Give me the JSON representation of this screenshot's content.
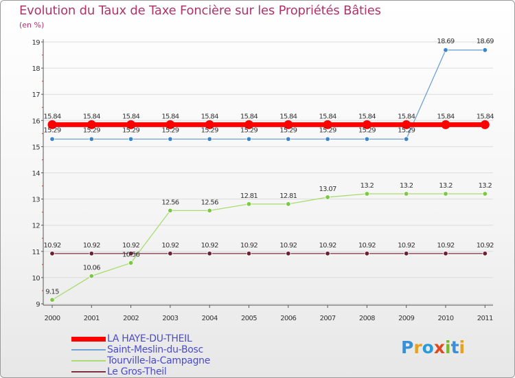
{
  "title": "Evolution du Taux de Taxe Foncière sur les Propriétés Bâties",
  "unit": "(en %)",
  "logo": {
    "text": "Proxiti",
    "colors": [
      "#3a8fd8",
      "#e8a020",
      "#2a9bd8",
      "#e04820",
      "#7ab82e",
      "#3a8fd8",
      "#e8a020"
    ]
  },
  "chart_data": {
    "type": "line",
    "title": "Evolution du Taux de Taxe Foncière sur les Propriétés Bâties",
    "ylabel": "(en %)",
    "xlabel": "",
    "ylim": [
      9,
      19
    ],
    "yticks": [
      "9",
      "10",
      "11",
      "12",
      "13",
      "14",
      "15",
      "16",
      "17",
      "18",
      "19"
    ],
    "x": [
      "2000",
      "2001",
      "2002",
      "2003",
      "2004",
      "2005",
      "2006",
      "2007",
      "2008",
      "2009",
      "2010",
      "2011"
    ],
    "series": [
      {
        "name": "LA HAYE-DU-THEIL",
        "color": "#ff0000",
        "thick": true,
        "values": [
          15.84,
          15.84,
          15.84,
          15.84,
          15.84,
          15.84,
          15.84,
          15.84,
          15.84,
          15.84,
          15.84,
          15.84
        ],
        "labels": [
          "15.84",
          "15.84",
          "15.84",
          "15.84",
          "15.84",
          "15.84",
          "15.84",
          "15.84",
          "15.84",
          "15.84",
          "15.84",
          "15.84"
        ]
      },
      {
        "name": "Saint-Meslin-du-Bosc",
        "color": "#6fa1d3",
        "marker": "#3a86c8",
        "values": [
          15.29,
          15.29,
          15.29,
          15.29,
          15.29,
          15.29,
          15.29,
          15.29,
          15.29,
          15.29,
          18.69,
          18.69
        ],
        "labels": [
          "15.29",
          "15.29",
          "15.29",
          "15.29",
          "15.29",
          "15.29",
          "15.29",
          "15.29",
          "15.29",
          "15.29",
          "18.69",
          "18.69"
        ]
      },
      {
        "name": "Tourville-la-Campagne",
        "color": "#a8dc6e",
        "marker": "#7ac943",
        "values": [
          9.15,
          10.06,
          10.56,
          12.56,
          12.56,
          12.81,
          12.81,
          13.07,
          13.2,
          13.2,
          13.2,
          13.2
        ],
        "labels": [
          "9.15",
          "10.06",
          "10.56",
          "12.56",
          "12.56",
          "12.81",
          "12.81",
          "13.07",
          "13.2",
          "13.2",
          "13.2",
          "13.2"
        ]
      },
      {
        "name": "Le Gros-Theil",
        "color": "#7a3040",
        "marker": "#6a2030",
        "values": [
          10.92,
          10.92,
          10.92,
          10.92,
          10.92,
          10.92,
          10.92,
          10.92,
          10.92,
          10.92,
          10.92,
          10.92
        ],
        "labels": [
          "10.92",
          "10.92",
          "10.92",
          "10.92",
          "10.92",
          "10.92",
          "10.92",
          "10.92",
          "10.92",
          "10.92",
          "10.92",
          "10.92"
        ]
      }
    ]
  }
}
